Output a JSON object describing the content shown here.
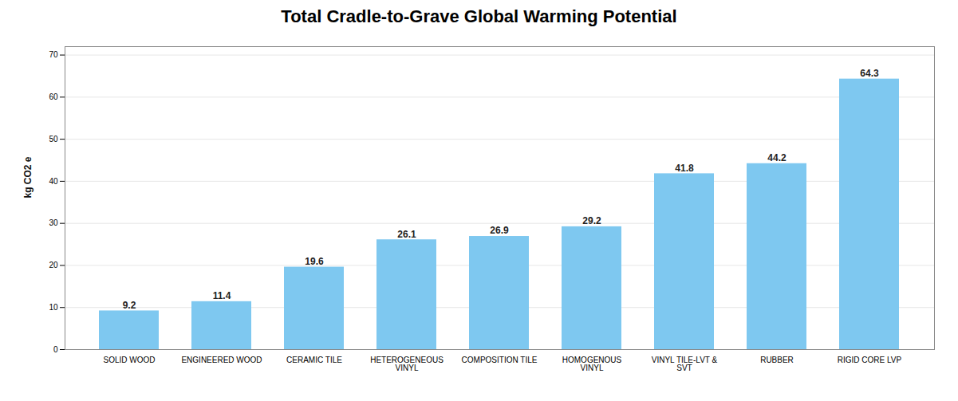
{
  "chart_data": {
    "type": "bar",
    "title": "Total Cradle-to-Grave Global Warming Potential",
    "ylabel": "kg CO2 e",
    "categories": [
      "SOLID WOOD",
      "ENGINEERED WOOD",
      "CERAMIC TILE",
      "HETEROGENEOUS\nVINYL",
      "COMPOSITION TILE",
      "HOMOGENOUS\nVINYL",
      "VINYL TILE-LVT &\nSVT",
      "RUBBER",
      "RIGID CORE LVP"
    ],
    "values": [
      9.2,
      11.4,
      19.6,
      26.1,
      26.9,
      29.2,
      41.8,
      44.2,
      64.3
    ],
    "color": "#7ec8f0",
    "ylim": [
      0,
      72
    ],
    "yticks": [
      0,
      10,
      20,
      30,
      40,
      50,
      60,
      70
    ],
    "grid": true,
    "data_labels": true
  }
}
